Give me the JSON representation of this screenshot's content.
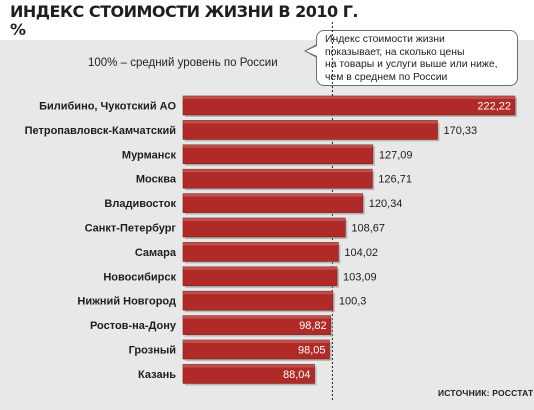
{
  "title": "ИНДЕКС СТОИМОСТИ ЖИЗНИ В 2010 Г.",
  "unit": "%",
  "reference_note": "100% – средний уровень по России",
  "callout": {
    "lines": [
      "Индекс стоимости жизни",
      "показывает, на сколько цены",
      "на товары и услуги выше или ниже,",
      "чем в среднем по России"
    ]
  },
  "source": "ИСТОЧНИК: РОССТАТ",
  "colors": {
    "bar": "#b02b28",
    "bar_dark": "#7d1b19",
    "background": "#e8e8e8"
  },
  "chart_data": {
    "type": "bar",
    "orientation": "horizontal",
    "title": "ИНДЕКС СТОИМОСТИ ЖИЗНИ В 2010 Г.",
    "unit": "%",
    "reference_line": 100,
    "categories": [
      "Билибино, Чукотский АО",
      "Петропавловск-Камчатский",
      "Мурманск",
      "Москва",
      "Владивосток",
      "Санкт-Петербург",
      "Самара",
      "Новосибирск",
      "Нижний Новгород",
      "Ростов-на-Дону",
      "Грозный",
      "Казань"
    ],
    "values": [
      222.22,
      170.33,
      127.09,
      126.71,
      120.34,
      108.67,
      104.02,
      103.09,
      100.3,
      98.82,
      98.05,
      88.04
    ],
    "value_labels": [
      "222,22",
      "170,33",
      "127,09",
      "126,71",
      "120,34",
      "108,67",
      "104,02",
      "103,09",
      "100,3",
      "98,82",
      "98,05",
      "88,04"
    ],
    "grid": false
  }
}
